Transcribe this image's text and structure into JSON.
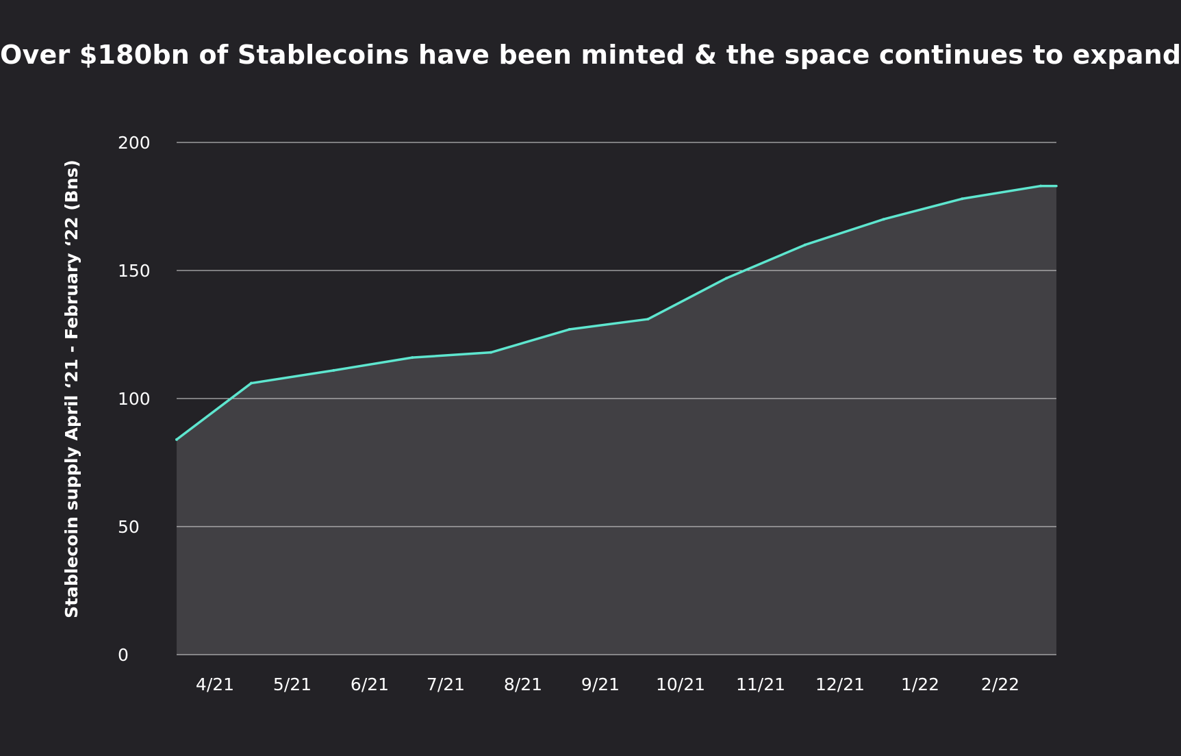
{
  "chart_data": {
    "type": "area",
    "title": "Over $180bn of Stablecoins have been minted & the space continues to expand",
    "xlabel": "",
    "ylabel": "Stablecoin supply April ‘21 - February ‘22 (Bns)",
    "ylim": [
      0,
      200
    ],
    "yticks": [
      "0",
      "50",
      "100",
      "150",
      "200"
    ],
    "xticks": [
      "4/21",
      "5/21",
      "6/21",
      "7/21",
      "8/21",
      "9/21",
      "10/21",
      "11/21",
      "12/21",
      "1/22",
      "2/22"
    ],
    "grid": true,
    "series": [
      {
        "name": "Stablecoin supply",
        "color": "#5ee6cf",
        "fill": "#414044",
        "x": [
          3.5,
          4.45,
          5.5,
          6.5,
          7.5,
          8.5,
          9.5,
          10.5,
          11.5,
          12.5,
          13.5,
          14.5
        ],
        "values": [
          84,
          106,
          111,
          116,
          118,
          127,
          131,
          147,
          160,
          170,
          178,
          183
        ]
      }
    ],
    "xlim": [
      3.5,
      14.7
    ]
  },
  "colors": {
    "background": "#232226",
    "line": "#5ee6cf",
    "area": "#414044",
    "grid": "#d9d9d9",
    "text": "#ffffff"
  }
}
